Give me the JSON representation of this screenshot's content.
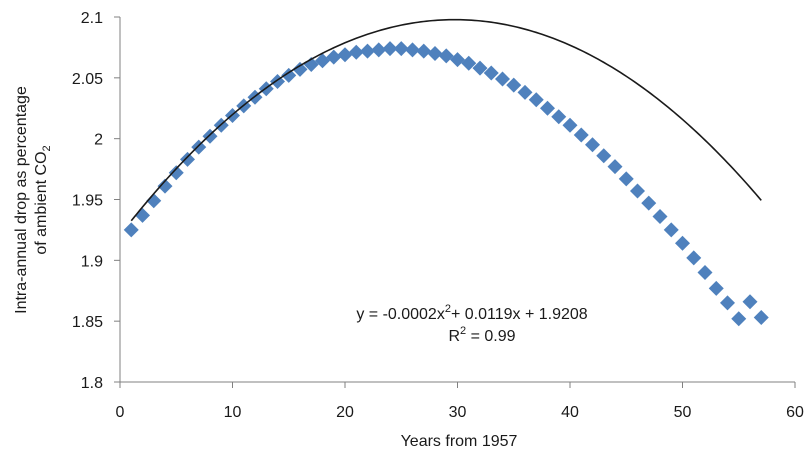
{
  "chart_data": {
    "type": "scatter",
    "xlabel": "Years from 1957",
    "ylabel_line1": "Intra-annual drop as percentage",
    "ylabel_line2_prefix": "of ambient CO",
    "ylabel_line2_sub": "2",
    "xlim": [
      0,
      60
    ],
    "ylim": [
      1.8,
      2.1
    ],
    "x_ticks": [
      0,
      10,
      20,
      30,
      40,
      50,
      60
    ],
    "x_tick_labels": [
      "0",
      "10",
      "20",
      "30",
      "40",
      "50",
      "60"
    ],
    "y_ticks": [
      1.8,
      1.85,
      1.9,
      1.95,
      2.0,
      2.05,
      2.1
    ],
    "y_tick_labels": [
      "1.8",
      "1.85",
      "1.9",
      "1.95",
      "2",
      "2.05",
      "2.1"
    ],
    "grid": false,
    "marker_color": "#4f81bd",
    "trend_color": "#1a1a1a",
    "series": [
      {
        "x": [
          1,
          2,
          3,
          4,
          5,
          6,
          7,
          8,
          9,
          10,
          11,
          12,
          13,
          14,
          15,
          16,
          17,
          18,
          19,
          20,
          21,
          22,
          23,
          24,
          25,
          26,
          27,
          28,
          29,
          30,
          31,
          32,
          33,
          34,
          35,
          36,
          37,
          38,
          39,
          40,
          41,
          42,
          43,
          44,
          45,
          46,
          47,
          48,
          49,
          50,
          51,
          52,
          53,
          54,
          55,
          56,
          57
        ],
        "y": [
          1.925,
          1.937,
          1.949,
          1.961,
          1.972,
          1.983,
          1.993,
          2.002,
          2.011,
          2.019,
          2.027,
          2.034,
          2.041,
          2.047,
          2.052,
          2.057,
          2.061,
          2.064,
          2.067,
          2.069,
          2.071,
          2.072,
          2.073,
          2.074,
          2.074,
          2.073,
          2.072,
          2.07,
          2.068,
          2.065,
          2.062,
          2.058,
          2.054,
          2.049,
          2.044,
          2.038,
          2.032,
          2.025,
          2.018,
          2.011,
          2.003,
          1.995,
          1.986,
          1.977,
          1.967,
          1.957,
          1.947,
          1.936,
          1.925,
          1.914,
          1.902,
          1.89,
          1.877,
          1.865,
          1.852,
          1.866,
          1.853
        ]
      }
    ],
    "trendline": {
      "a": -0.0002,
      "b": 0.0119,
      "c": 1.9208,
      "x_start": 1,
      "x_end": 57
    },
    "annotation": {
      "equation_prefix": "y = -0.0002x",
      "equation_sup": "2",
      "equation_suffix": "+ 0.0119x + 1.9208",
      "r2_prefix": "R",
      "r2_sup": "2",
      "r2_suffix": " = 0.99"
    }
  }
}
